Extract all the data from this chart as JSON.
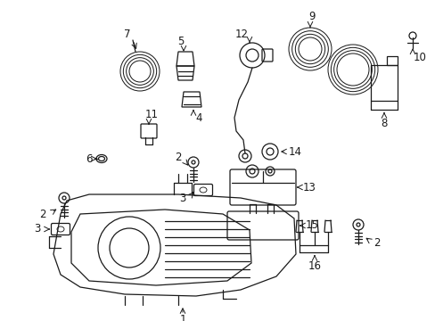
{
  "bg_color": "#ffffff",
  "line_color": "#1a1a1a",
  "fig_width": 4.89,
  "fig_height": 3.6,
  "dpi": 100,
  "lw": 0.9,
  "fontsize": 8.5
}
